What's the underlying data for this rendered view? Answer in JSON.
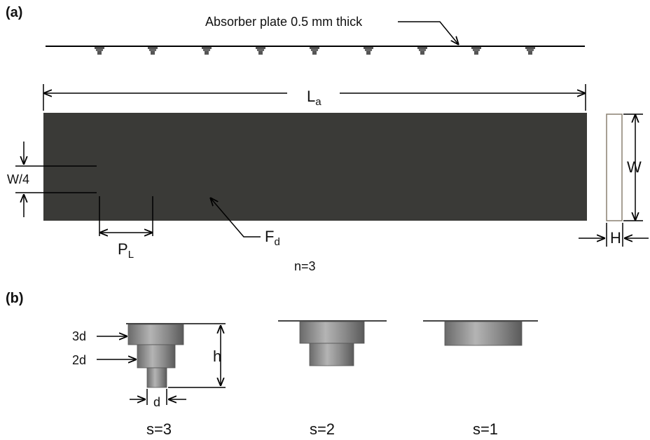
{
  "part_a": {
    "label": "(a)",
    "plate_note": "Absorber plate 0.5 mm thick",
    "length": {
      "main": "L",
      "sub": "a"
    },
    "quarter_width": "W/4",
    "pitch": {
      "main": "P",
      "sub": "L"
    },
    "fin_diameter": {
      "main": "F",
      "sub": "d"
    },
    "rows": "n=3",
    "width": "W",
    "height": "H"
  },
  "part_b": {
    "label": "(b)",
    "step_3d": "3d",
    "step_2d": "2d",
    "fin_height": "h",
    "base_d": "d",
    "cases": [
      "s=3",
      "s=2",
      "s=1"
    ]
  }
}
